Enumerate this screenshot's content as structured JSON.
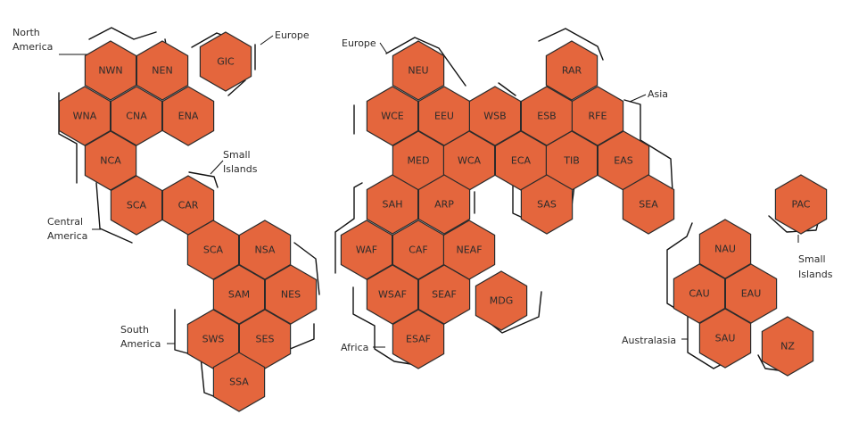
{
  "colors": {
    "hex_fill": "#e4663d",
    "hex_stroke": "#2b2b2b",
    "text": "#2b2b2b"
  },
  "hexagons": [
    "NWN",
    "NEN",
    "GIC",
    "WNA",
    "CNA",
    "ENA",
    "NCA",
    "SCA",
    "CAR",
    "SCA",
    "NSA",
    "SAM",
    "NES",
    "SWS",
    "SES",
    "SSA",
    "NEU",
    "RAR",
    "WCE",
    "EEU",
    "WSB",
    "ESB",
    "RFE",
    "MED",
    "WCA",
    "ECA",
    "TIB",
    "EAS",
    "SAH",
    "ARP",
    "SAS",
    "SEA",
    "WAF",
    "CAF",
    "NEAF",
    "WSAF",
    "SEAF",
    "MDG",
    "ESAF",
    "PAC",
    "NAU",
    "CAU",
    "EAU",
    "SAU",
    "NZ"
  ],
  "region_labels": {
    "north_america": [
      "North",
      "America"
    ],
    "europe_west": "Europe",
    "central_america": [
      "Central",
      "America"
    ],
    "small_islands_west": [
      "Small",
      "Islands"
    ],
    "south_america": [
      "South",
      "America"
    ],
    "europe": "Europe",
    "asia": "Asia",
    "africa": "Africa",
    "australasia": "Australasia",
    "small_islands_east": [
      "Small",
      "Islands"
    ]
  }
}
